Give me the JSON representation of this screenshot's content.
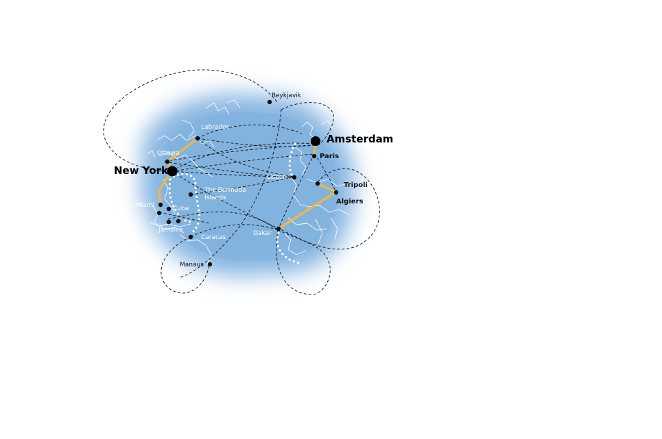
{
  "map": {
    "major_cities": [
      {
        "id": "new-york",
        "name": "New York"
      },
      {
        "id": "amsterdam",
        "name": "Amsterdam"
      }
    ],
    "cities": [
      {
        "id": "reykjavik",
        "name": "Reykjavik"
      },
      {
        "id": "labrador",
        "name": "Labrador"
      },
      {
        "id": "ottawa",
        "name": "Ottawa"
      },
      {
        "id": "paris",
        "name": "Paris"
      },
      {
        "id": "lisbon",
        "name": "Lisbon"
      },
      {
        "id": "tripoli",
        "name": "Tripoli"
      },
      {
        "id": "algiers",
        "name": "Algiers"
      },
      {
        "id": "bermuda",
        "name": "The Bermuda Islands"
      },
      {
        "id": "miami",
        "name": "Miami"
      },
      {
        "id": "cuba",
        "name": "Cuba"
      },
      {
        "id": "jamaica",
        "name": "Jamaica"
      },
      {
        "id": "dakar",
        "name": "Dakar"
      },
      {
        "id": "caracas",
        "name": "Caracas"
      },
      {
        "id": "manaus",
        "name": "Manaus"
      }
    ],
    "colors": {
      "ocean": "#8ab8e3",
      "gold_route": "#f1b83e",
      "dotted_route": "#ffffff",
      "dashed_route": "#1a1a1a"
    }
  }
}
